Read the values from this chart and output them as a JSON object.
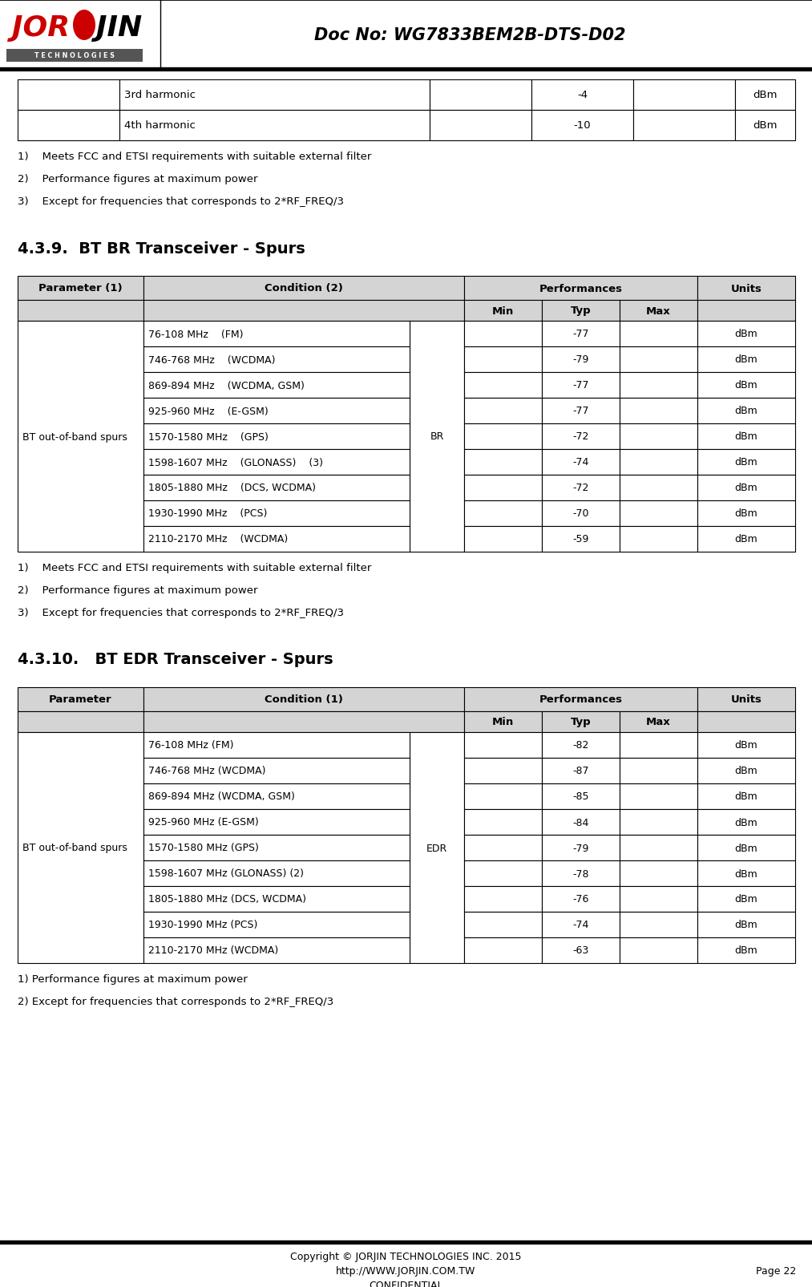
{
  "doc_title": "Doc No: WG7833BEM2B-DTS-D02",
  "page_num": "Page 22",
  "footer_line1": "Copyright © JORJIN TECHNOLOGIES INC. 2015",
  "footer_line2": "http://WWW.JORJIN.COM.TW",
  "footer_line3": "CONFIDENTIAL",
  "top_table_rows": [
    [
      "",
      "3rd harmonic",
      "",
      "-4",
      "",
      "dBm"
    ],
    [
      "",
      "4th harmonic",
      "",
      "-10",
      "",
      "dBm"
    ]
  ],
  "notes_before_br": [
    "1)    Meets FCC and ETSI requirements with suitable external filter",
    "2)    Performance figures at maximum power",
    "3)    Except for frequencies that corresponds to 2*RF_FREQ/3"
  ],
  "section_439_title": "4.3.9.  BT BR Transceiver - Spurs",
  "br_header1_param": "Parameter (1)",
  "br_header1_cond": "Condition (2)",
  "br_header1_perf": "Performances",
  "br_header1_units": "Units",
  "br_data_rows": [
    [
      "BT out-of-band spurs",
      "76-108 MHz    (FM)",
      "BR",
      "",
      "-77",
      "",
      "dBm"
    ],
    [
      "",
      "746-768 MHz    (WCDMA)",
      "",
      "",
      "-79",
      "",
      "dBm"
    ],
    [
      "",
      "869-894 MHz    (WCDMA, GSM)",
      "",
      "",
      "-77",
      "",
      "dBm"
    ],
    [
      "",
      "925-960 MHz    (E-GSM)",
      "",
      "",
      "-77",
      "",
      "dBm"
    ],
    [
      "",
      "1570-1580 MHz    (GPS)",
      "",
      "",
      "-72",
      "",
      "dBm"
    ],
    [
      "",
      "1598-1607 MHz    (GLONASS)    (3)",
      "",
      "",
      "-74",
      "",
      "dBm"
    ],
    [
      "",
      "1805-1880 MHz    (DCS, WCDMA)",
      "",
      "",
      "-72",
      "",
      "dBm"
    ],
    [
      "",
      "1930-1990 MHz    (PCS)",
      "",
      "",
      "-70",
      "",
      "dBm"
    ],
    [
      "",
      "2110-2170 MHz    (WCDMA)",
      "",
      "",
      "-59",
      "",
      "dBm"
    ]
  ],
  "notes_after_br": [
    "1)    Meets FCC and ETSI requirements with suitable external filter",
    "2)    Performance figures at maximum power",
    "3)    Except for frequencies that corresponds to 2*RF_FREQ/3"
  ],
  "section_4310_title": "4.3.10.   BT EDR Transceiver - Spurs",
  "edr_header1_param": "Parameter",
  "edr_header1_cond": "Condition (1)",
  "edr_header1_perf": "Performances",
  "edr_header1_units": "Units",
  "edr_data_rows": [
    [
      "BT out-of-band spurs",
      "76-108 MHz (FM)",
      "EDR",
      "",
      "-82",
      "",
      "dBm"
    ],
    [
      "",
      "746-768 MHz (WCDMA)",
      "",
      "",
      "-87",
      "",
      "dBm"
    ],
    [
      "",
      "869-894 MHz (WCDMA, GSM)",
      "",
      "",
      "-85",
      "",
      "dBm"
    ],
    [
      "",
      "925-960 MHz (E-GSM)",
      "",
      "",
      "-84",
      "",
      "dBm"
    ],
    [
      "",
      "1570-1580 MHz (GPS)",
      "",
      "",
      "-79",
      "",
      "dBm"
    ],
    [
      "",
      "1598-1607 MHz (GLONASS) (2)",
      "",
      "",
      "-78",
      "",
      "dBm"
    ],
    [
      "",
      "1805-1880 MHz (DCS, WCDMA)",
      "",
      "",
      "-76",
      "",
      "dBm"
    ],
    [
      "",
      "1930-1990 MHz (PCS)",
      "",
      "",
      "-74",
      "",
      "dBm"
    ],
    [
      "",
      "2110-2170 MHz (WCDMA)",
      "",
      "",
      "-63",
      "",
      "dBm"
    ]
  ],
  "notes_after_edr": [
    "1) Performance figures at maximum power",
    "2) Except for frequencies that corresponds to 2*RF_FREQ/3"
  ],
  "header_bg": "#d4d4d4",
  "white_bg": "#ffffff",
  "border_color": "#000000"
}
